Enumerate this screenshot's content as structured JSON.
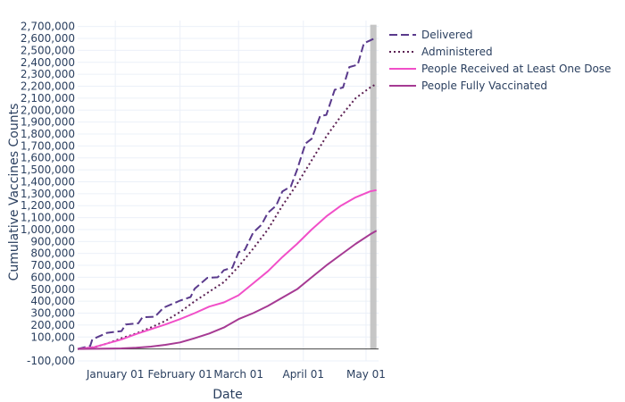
{
  "chart_data": {
    "type": "line",
    "xlabel": "Date",
    "ylabel": "Cumulative Vaccines Counts",
    "x_range": [
      "2020-12-14",
      "2021-05-07"
    ],
    "ylim": [
      -100000,
      2750000
    ],
    "x_tick_labels": [
      {
        "date": "2021-01-01",
        "label": "January 01"
      },
      {
        "date": "2021-02-01",
        "label": "February 01"
      },
      {
        "date": "2021-03-01",
        "label": "March 01"
      },
      {
        "date": "2021-04-01",
        "label": "April 01"
      },
      {
        "date": "2021-05-01",
        "label": "May 01"
      }
    ],
    "y_tick_labels": [
      "-100,000",
      "0",
      "100,000",
      "200,000",
      "300,000",
      "400,000",
      "500,000",
      "600,000",
      "700,000",
      "800,000",
      "900,000",
      "1,000,000",
      "1,100,000",
      "1,200,000",
      "1,300,000",
      "1,400,000",
      "1,500,000",
      "1,600,000",
      "1,700,000",
      "1,800,000",
      "1,900,000",
      "2,000,000",
      "2,100,000",
      "2,200,000",
      "2,300,000",
      "2,400,000",
      "2,500,000",
      "2,600,000",
      "2,700,000"
    ],
    "y_tick_values": [
      -100000,
      0,
      100000,
      200000,
      300000,
      400000,
      500000,
      600000,
      700000,
      800000,
      900000,
      1000000,
      1100000,
      1200000,
      1300000,
      1400000,
      1500000,
      1600000,
      1700000,
      1800000,
      1900000,
      2000000,
      2100000,
      2200000,
      2300000,
      2400000,
      2500000,
      2600000,
      2700000
    ],
    "grid": true,
    "legend_position": "top-right, outside plot",
    "shaded_region": {
      "start": "2021-05-03",
      "end": "2021-05-06",
      "color": "#c0c0c0"
    },
    "series": [
      {
        "name": "Delivered",
        "color": "#5a3a8c",
        "dash": "dash",
        "points": [
          [
            "2020-12-14",
            0
          ],
          [
            "2020-12-20",
            25000
          ],
          [
            "2020-12-21",
            80000
          ],
          [
            "2020-12-28",
            135000
          ],
          [
            "2021-01-04",
            150000
          ],
          [
            "2021-01-06",
            205000
          ],
          [
            "2021-01-12",
            215000
          ],
          [
            "2021-01-14",
            265000
          ],
          [
            "2021-01-20",
            270000
          ],
          [
            "2021-01-24",
            345000
          ],
          [
            "2021-02-01",
            405000
          ],
          [
            "2021-02-06",
            435000
          ],
          [
            "2021-02-08",
            505000
          ],
          [
            "2021-02-14",
            595000
          ],
          [
            "2021-02-19",
            600000
          ],
          [
            "2021-02-22",
            660000
          ],
          [
            "2021-02-26",
            680000
          ],
          [
            "2021-03-01",
            810000
          ],
          [
            "2021-03-04",
            830000
          ],
          [
            "2021-03-08",
            975000
          ],
          [
            "2021-03-12",
            1040000
          ],
          [
            "2021-03-15",
            1140000
          ],
          [
            "2021-03-19",
            1200000
          ],
          [
            "2021-03-22",
            1320000
          ],
          [
            "2021-03-26",
            1360000
          ],
          [
            "2021-03-29",
            1500000
          ],
          [
            "2021-04-02",
            1720000
          ],
          [
            "2021-04-05",
            1760000
          ],
          [
            "2021-04-09",
            1950000
          ],
          [
            "2021-04-12",
            1960000
          ],
          [
            "2021-04-16",
            2170000
          ],
          [
            "2021-04-20",
            2190000
          ],
          [
            "2021-04-23",
            2360000
          ],
          [
            "2021-04-27",
            2380000
          ],
          [
            "2021-04-30",
            2560000
          ],
          [
            "2021-05-05",
            2600000
          ]
        ]
      },
      {
        "name": "Administered",
        "color": "#5b1f52",
        "dash": "dot",
        "points": [
          [
            "2020-12-14",
            0
          ],
          [
            "2020-12-22",
            15000
          ],
          [
            "2020-12-28",
            45000
          ],
          [
            "2021-01-04",
            90000
          ],
          [
            "2021-01-11",
            130000
          ],
          [
            "2021-01-18",
            180000
          ],
          [
            "2021-01-25",
            235000
          ],
          [
            "2021-02-01",
            310000
          ],
          [
            "2021-02-08",
            400000
          ],
          [
            "2021-02-15",
            480000
          ],
          [
            "2021-02-22",
            560000
          ],
          [
            "2021-03-01",
            690000
          ],
          [
            "2021-03-08",
            840000
          ],
          [
            "2021-03-15",
            1000000
          ],
          [
            "2021-03-22",
            1200000
          ],
          [
            "2021-03-29",
            1380000
          ],
          [
            "2021-04-05",
            1580000
          ],
          [
            "2021-04-12",
            1780000
          ],
          [
            "2021-04-19",
            1950000
          ],
          [
            "2021-04-26",
            2100000
          ],
          [
            "2021-05-03",
            2190000
          ],
          [
            "2021-05-06",
            2220000
          ]
        ]
      },
      {
        "name": "People Received at Least One Dose",
        "color": "#f14fc8",
        "dash": "solid",
        "points": [
          [
            "2020-12-14",
            0
          ],
          [
            "2020-12-22",
            15000
          ],
          [
            "2020-12-28",
            45000
          ],
          [
            "2021-01-04",
            80000
          ],
          [
            "2021-01-11",
            125000
          ],
          [
            "2021-01-18",
            165000
          ],
          [
            "2021-01-25",
            205000
          ],
          [
            "2021-02-01",
            250000
          ],
          [
            "2021-02-08",
            300000
          ],
          [
            "2021-02-15",
            355000
          ],
          [
            "2021-02-22",
            390000
          ],
          [
            "2021-03-01",
            450000
          ],
          [
            "2021-03-08",
            550000
          ],
          [
            "2021-03-15",
            650000
          ],
          [
            "2021-03-22",
            770000
          ],
          [
            "2021-03-29",
            880000
          ],
          [
            "2021-04-05",
            1000000
          ],
          [
            "2021-04-12",
            1110000
          ],
          [
            "2021-04-19",
            1200000
          ],
          [
            "2021-04-26",
            1270000
          ],
          [
            "2021-05-03",
            1320000
          ],
          [
            "2021-05-06",
            1330000
          ]
        ]
      },
      {
        "name": "People Fully Vaccinated",
        "color": "#a63a93",
        "dash": "solid",
        "points": [
          [
            "2020-12-14",
            0
          ],
          [
            "2021-01-04",
            5000
          ],
          [
            "2021-01-11",
            10000
          ],
          [
            "2021-01-18",
            20000
          ],
          [
            "2021-01-25",
            35000
          ],
          [
            "2021-02-01",
            55000
          ],
          [
            "2021-02-08",
            90000
          ],
          [
            "2021-02-15",
            130000
          ],
          [
            "2021-02-22",
            180000
          ],
          [
            "2021-03-01",
            250000
          ],
          [
            "2021-03-08",
            300000
          ],
          [
            "2021-03-15",
            360000
          ],
          [
            "2021-03-22",
            430000
          ],
          [
            "2021-03-29",
            500000
          ],
          [
            "2021-04-05",
            600000
          ],
          [
            "2021-04-12",
            700000
          ],
          [
            "2021-04-19",
            790000
          ],
          [
            "2021-04-26",
            880000
          ],
          [
            "2021-05-03",
            960000
          ],
          [
            "2021-05-06",
            990000
          ]
        ]
      }
    ]
  }
}
